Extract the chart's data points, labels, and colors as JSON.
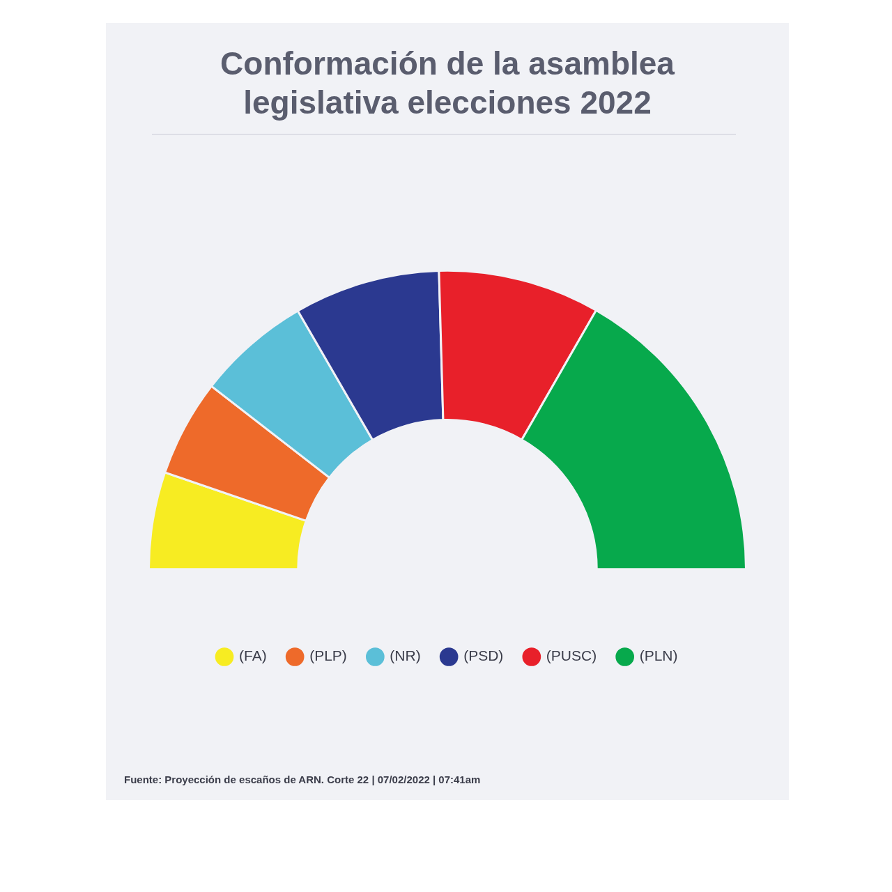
{
  "chart_data": {
    "type": "donut",
    "title": "Conformación de la asamblea legislativa elecciones 2022",
    "categories": [
      "(FA)",
      "(PLP)",
      "(NR)",
      "(PSD)",
      "(PUSC)",
      "(PLN)"
    ],
    "values": [
      10.5,
      10.5,
      12.3,
      15.8,
      17.5,
      33.4
    ],
    "colors": [
      "#f7ec22",
      "#ee6a2a",
      "#5bbfd8",
      "#2b3990",
      "#e8202a",
      "#07a94c"
    ],
    "legend": "bottom",
    "annotations": [
      "Fuente: Proyección de escaños de ARN. Corte 22 | 07/02/2022 | 07:41am"
    ]
  }
}
